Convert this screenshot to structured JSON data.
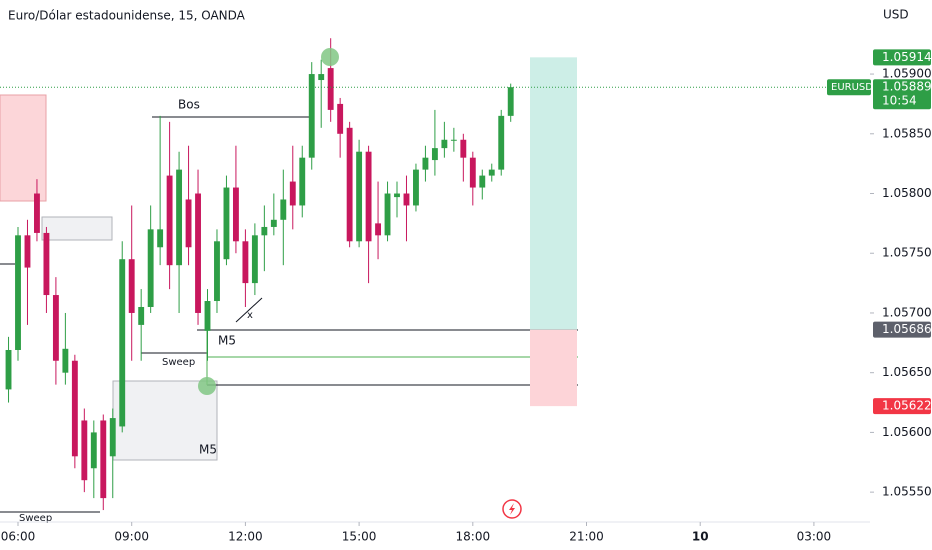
{
  "chart_data": {
    "type": "candlestick",
    "title": "Euro/Dólar estadounidense, 15, OANDA",
    "currency": "USD",
    "up_color": "#2e9e46",
    "down_color": "#c8175d",
    "x": [
      5.75,
      6,
      6.25,
      6.5,
      6.75,
      7,
      7.25,
      7.5,
      7.75,
      8,
      8.25,
      8.5,
      8.75,
      9,
      9.25,
      9.5,
      9.75,
      10,
      10.25,
      10.5,
      10.75,
      11,
      11.25,
      11.5,
      11.75,
      12,
      12.25,
      12.5,
      12.75,
      13,
      13.25,
      13.5,
      13.75,
      14,
      14.25,
      14.5,
      14.75,
      15,
      15.25,
      15.5,
      15.75,
      16,
      16.25,
      16.5,
      16.75,
      17,
      17.25,
      17.5,
      17.75,
      18,
      18.25,
      18.5,
      18.75,
      19
    ],
    "open": [
      1.05636,
      1.05669,
      1.05765,
      1.058,
      1.05767,
      1.05715,
      1.0565,
      1.0566,
      1.0561,
      1.0557,
      1.0561,
      1.0558,
      1.05605,
      1.05745,
      1.0569,
      1.05705,
      1.05755,
      1.05815,
      1.0574,
      1.05795,
      1.058,
      1.05685,
      1.0571,
      1.05745,
      1.05805,
      1.0576,
      1.05725,
      1.05765,
      1.05772,
      1.05778,
      1.0581,
      1.0579,
      1.0583,
      1.05895,
      1.05905,
      1.05875,
      1.05855,
      1.0576,
      1.05835,
      1.05775,
      1.05765,
      1.05797,
      1.058,
      1.0579,
      1.0582,
      1.05828,
      1.05838,
      1.05845,
      1.05845,
      1.0583,
      1.05805,
      1.05815,
      1.0582,
      1.05865
    ],
    "high": [
      1.0568,
      1.05772,
      1.05778,
      1.05812,
      1.05772,
      1.0573,
      1.057,
      1.05665,
      1.0562,
      1.0561,
      1.05615,
      1.0562,
      1.0576,
      1.0579,
      1.0572,
      1.0579,
      1.05865,
      1.0586,
      1.05835,
      1.0584,
      1.0582,
      1.0572,
      1.0577,
      1.05815,
      1.0584,
      1.0577,
      1.05775,
      1.0579,
      1.058,
      1.0582,
      1.0584,
      1.0584,
      1.0591,
      1.05912,
      1.0593,
      1.0588,
      1.0586,
      1.05845,
      1.0584,
      1.0581,
      1.0581,
      1.0581,
      1.05815,
      1.05825,
      1.0584,
      1.0587,
      1.0586,
      1.05855,
      1.0585,
      1.05835,
      1.0582,
      1.05825,
      1.0587,
      1.05892
    ],
    "low": [
      1.05625,
      1.0566,
      1.0569,
      1.0576,
      1.057,
      1.0564,
      1.0564,
      1.0557,
      1.0555,
      1.05545,
      1.05535,
      1.05545,
      1.056,
      1.0566,
      1.0566,
      1.057,
      1.0574,
      1.0572,
      1.057,
      1.0574,
      1.0569,
      1.0566,
      1.057,
      1.0574,
      1.0575,
      1.05705,
      1.05715,
      1.05735,
      1.05765,
      1.0574,
      1.0577,
      1.0578,
      1.0582,
      1.05855,
      1.0586,
      1.0583,
      1.05755,
      1.05755,
      1.05725,
      1.05745,
      1.0576,
      1.0578,
      1.0576,
      1.05785,
      1.0581,
      1.05815,
      1.0583,
      1.05835,
      1.0581,
      1.0579,
      1.05795,
      1.0581,
      1.05815,
      1.0586
    ],
    "close": [
      1.05669,
      1.05765,
      1.05738,
      1.05767,
      1.05715,
      1.0566,
      1.0567,
      1.0558,
      1.0556,
      1.056,
      1.05545,
      1.05612,
      1.05745,
      1.057,
      1.05705,
      1.0577,
      1.0577,
      1.0574,
      1.0582,
      1.05755,
      1.057,
      1.0571,
      1.0576,
      1.05805,
      1.0576,
      1.05725,
      1.05765,
      1.05772,
      1.05778,
      1.05795,
      1.0579,
      1.0583,
      1.059,
      1.059,
      1.0587,
      1.0585,
      1.0576,
      1.05835,
      1.0576,
      1.05765,
      1.058,
      1.058,
      1.0579,
      1.0582,
      1.0583,
      1.05838,
      1.05845,
      1.05845,
      1.0583,
      1.05805,
      1.05815,
      1.0582,
      1.05865,
      1.05889
    ],
    "xlim": [
      5.525,
      28.48
    ],
    "xticks": [
      {
        "value": 6,
        "label": "06:00"
      },
      {
        "value": 9,
        "label": "09:00"
      },
      {
        "value": 12,
        "label": "12:00"
      },
      {
        "value": 15,
        "label": "15:00"
      },
      {
        "value": 18,
        "label": "18:00"
      },
      {
        "value": 21,
        "label": "21:00"
      },
      {
        "value": 24,
        "label": "10"
      },
      {
        "value": 27,
        "label": "03:00"
      }
    ],
    "ylim": [
      1.05525,
      1.05962
    ],
    "yticks": [
      {
        "value": 1.0555,
        "label": "1.05550"
      },
      {
        "value": 1.056,
        "label": "1.05600"
      },
      {
        "value": 1.0565,
        "label": "1.05650"
      },
      {
        "value": 1.057,
        "label": "1.05700"
      },
      {
        "value": 1.0575,
        "label": "1.05750"
      },
      {
        "value": 1.058,
        "label": "1.05800"
      },
      {
        "value": 1.0585,
        "label": "1.05850"
      },
      {
        "value": 1.059,
        "label": "1.05900"
      }
    ],
    "last_price": {
      "symbol": "EURUSD",
      "value": 1.05889,
      "label": "1.05889",
      "countdown": "10:54"
    },
    "position": {
      "target": {
        "value": 1.05914,
        "label": "1.05914"
      },
      "entry": {
        "value": 1.05686,
        "label": "1.05686"
      },
      "stop": {
        "value": 1.05622,
        "label": "1.05622"
      }
    },
    "annotations": {
      "bos": "Bos",
      "m5_line": "M5",
      "sweep_mid": "Sweep",
      "x_mark": "x",
      "m5_box": "M5",
      "sweep_low": "Sweep"
    }
  }
}
